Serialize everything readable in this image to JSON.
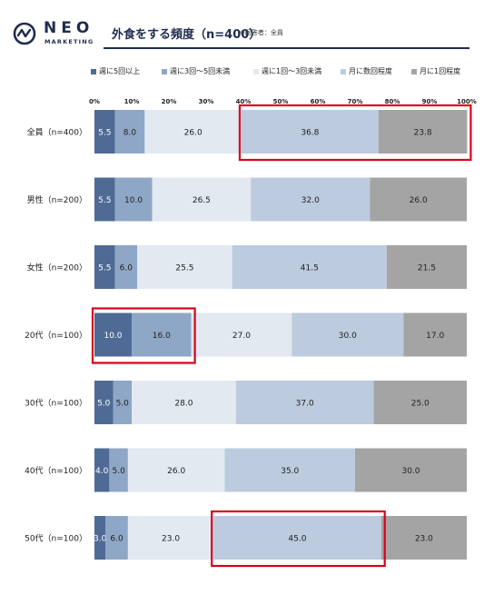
{
  "brand": {
    "name": "NEO",
    "sub": "MARKETING"
  },
  "header": {
    "title": "外食をする頻度（n=400）",
    "note": "※回答者：全員"
  },
  "colors": {
    "series": [
      "#4e6b96",
      "#8fa7c6",
      "#e2e9f1",
      "#bccbdd",
      "#a4a4a4"
    ],
    "highlight": "#d9001b",
    "rule": "#1f2d4e"
  },
  "chart_data": {
    "type": "bar",
    "orientation": "horizontal",
    "stacked": true,
    "xlim": [
      0,
      100
    ],
    "x_ticks": [
      "0%",
      "10%",
      "20%",
      "30%",
      "40%",
      "50%",
      "60%",
      "70%",
      "80%",
      "90%",
      "100%"
    ],
    "categories": [
      "全員（n=400）",
      "男性（n=200）",
      "女性（n=200）",
      "20代（n=100）",
      "30代（n=100）",
      "40代（n=100）",
      "50代（n=100）"
    ],
    "series": [
      {
        "name": "週に5回以上",
        "values": [
          5.5,
          5.5,
          5.5,
          10.0,
          5.0,
          4.0,
          3.0
        ]
      },
      {
        "name": "週に3回～5回未満",
        "values": [
          8.0,
          10.0,
          6.0,
          16.0,
          5.0,
          5.0,
          6.0
        ]
      },
      {
        "name": "週に1回～3回未満",
        "values": [
          26.0,
          26.5,
          25.5,
          27.0,
          28.0,
          26.0,
          23.0
        ]
      },
      {
        "name": "月に数回程度",
        "values": [
          36.8,
          32.0,
          41.5,
          30.0,
          37.0,
          35.0,
          45.0
        ]
      },
      {
        "name": "月に1回程度",
        "values": [
          23.8,
          26.0,
          21.5,
          17.0,
          25.0,
          30.0,
          23.0
        ]
      }
    ],
    "value_labels": [
      [
        "5.5",
        "5.5",
        "5.5",
        "10.0",
        "5.0",
        "4.0",
        "3.0"
      ],
      [
        "8.0",
        "10.0",
        "6.0",
        "16.0",
        "5.0",
        "5.0",
        "6.0"
      ],
      [
        "26.0",
        "26.5",
        "25.5",
        "27.0",
        "28.0",
        "26.0",
        "23.0"
      ],
      [
        "36.8",
        "32.0",
        "41.5",
        "30.0",
        "37.0",
        "35.0",
        "45.0"
      ],
      [
        "23.8",
        "26.0",
        "21.5",
        "17.0",
        "25.0",
        "30.0",
        "23.0"
      ]
    ],
    "highlights": [
      {
        "category_index": 0,
        "series_from": 3,
        "series_to": 4
      },
      {
        "category_index": 3,
        "series_from": 0,
        "series_to": 1
      },
      {
        "category_index": 6,
        "series_from": 3,
        "series_to": 3
      }
    ],
    "grid": false,
    "legend_position": "top"
  }
}
